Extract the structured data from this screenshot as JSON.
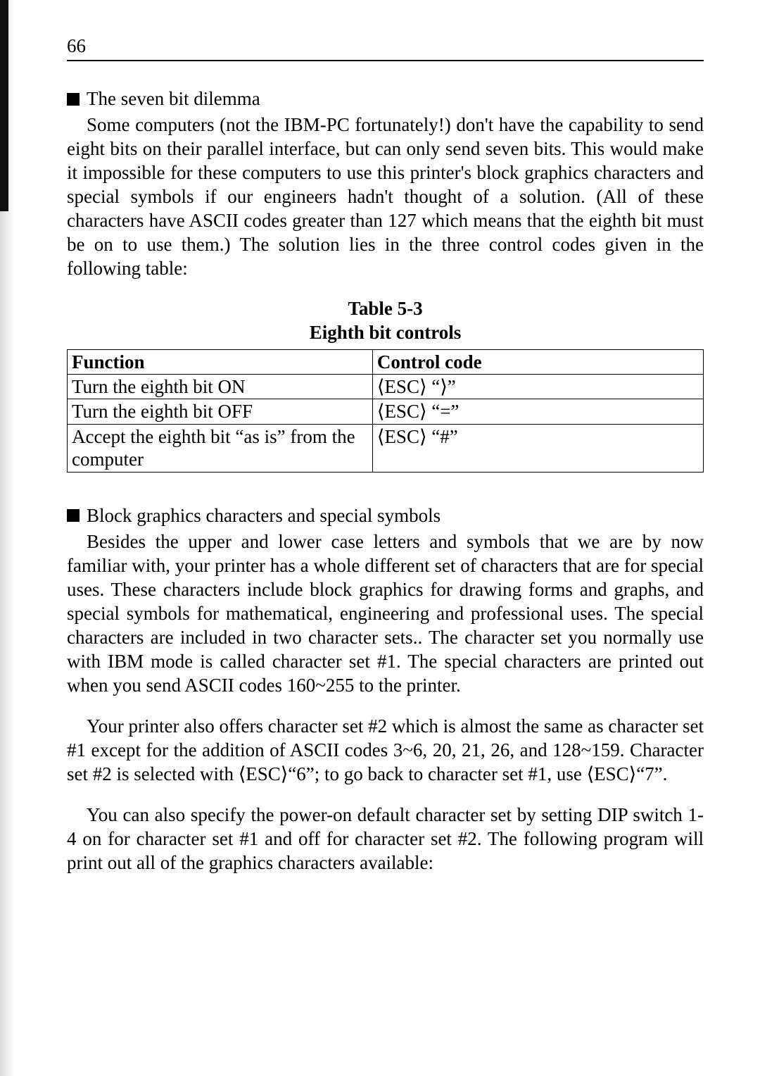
{
  "page_number": "66",
  "section1": {
    "heading": "The seven bit dilemma",
    "paragraph": "Some computers (not the IBM-PC fortunately!) don't have the capability to send eight bits on their parallel interface, but can only send seven bits. This would make it impossible for these computers to use this printer's block graphics characters and special symbols if our engineers hadn't thought of a solution. (All of these characters have ASCII codes greater than 127 which means that the eighth bit must be on to use them.) The solution lies in the three control codes given in the following table:"
  },
  "table": {
    "caption_line1": "Table 5-3",
    "caption_line2": "Eighth bit controls",
    "header_col1": "Function",
    "header_col2": "Control code",
    "rows": [
      {
        "fn": "Turn the eighth bit ON",
        "code": "⟨ESC⟩ “⟩”"
      },
      {
        "fn": "Turn the eighth bit OFF",
        "code": "⟨ESC⟩ “=”"
      },
      {
        "fn": "Accept the eighth bit “as is” from the computer",
        "code": "⟨ESC⟩ “#”"
      }
    ]
  },
  "section2": {
    "heading": "Block graphics characters and special symbols",
    "p1": "Besides the upper and lower case letters and symbols that we are by now familiar with, your printer has a whole different set of characters that are for special uses. These characters include block graphics for drawing forms and graphs, and special symbols for mathematical, engineering and professional uses. The special characters are included in two character sets.. The character set you normally use with IBM mode is called character set #1. The special characters are printed out when you send ASCII codes 160~255 to the printer.",
    "p2": "Your printer also offers character set #2 which is almost the same as character set #1 except for the addition of ASCII codes 3~6, 20, 21, 26, and 128~159. Character set #2 is selected with ⟨ESC⟩“6”; to go back to character set #1, use ⟨ESC⟩“7”.",
    "p3": "You can also specify the power-on default character set by setting DIP switch 1-4 on for character set #1 and off for character set #2. The following program will print out all of the graphics characters available:"
  }
}
